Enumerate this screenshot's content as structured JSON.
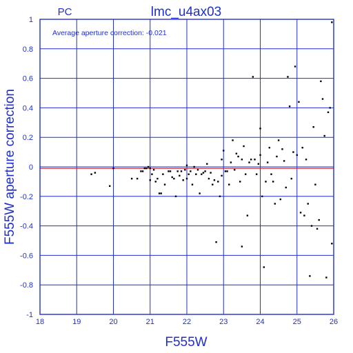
{
  "header": {
    "detector": "PC",
    "title": "lmc_u4ax03"
  },
  "annotation": "Average aperture correction: -0.021",
  "chart_data": {
    "type": "scatter",
    "title": "lmc_u4ax03",
    "subtitle": "PC",
    "xlabel": "F555W",
    "ylabel": "F555W aperture correction",
    "xlim": [
      18,
      26
    ],
    "ylim": [
      -1,
      1
    ],
    "grid": true,
    "x_ticks": [
      "18",
      "19",
      "20",
      "21",
      "22",
      "23",
      "24",
      "25",
      "26"
    ],
    "y_ticks": [
      "1",
      "0.8",
      "0.6",
      "0.4",
      "0.2",
      "0",
      "-0.2",
      "-0.4",
      "-0.6",
      "-0.8",
      "-1"
    ],
    "reference_line": {
      "y": -0.01,
      "color": "#e02020"
    },
    "colors": {
      "frame": "#1f2fc8",
      "points": "#000000",
      "reference": "#e02020"
    },
    "points": [
      [
        19.4,
        -0.05
      ],
      [
        19.5,
        -0.04
      ],
      [
        19.9,
        -0.13
      ],
      [
        20.0,
        -0.01
      ],
      [
        20.5,
        -0.08
      ],
      [
        20.65,
        -0.08
      ],
      [
        20.75,
        -0.03
      ],
      [
        20.8,
        -0.03
      ],
      [
        20.85,
        -0.01
      ],
      [
        20.9,
        -0.01
      ],
      [
        20.95,
        0.0
      ],
      [
        21.0,
        -0.01
      ],
      [
        21.0,
        -0.09
      ],
      [
        21.05,
        -0.05
      ],
      [
        21.1,
        -0.02
      ],
      [
        21.15,
        -0.1
      ],
      [
        21.2,
        -0.08
      ],
      [
        21.25,
        -0.18
      ],
      [
        21.3,
        -0.18
      ],
      [
        21.35,
        -0.05
      ],
      [
        21.4,
        -0.12
      ],
      [
        21.5,
        -0.03
      ],
      [
        21.55,
        -0.03
      ],
      [
        21.6,
        -0.07
      ],
      [
        21.65,
        -0.08
      ],
      [
        21.7,
        -0.2
      ],
      [
        21.75,
        -0.03
      ],
      [
        21.8,
        -0.06
      ],
      [
        21.85,
        -0.03
      ],
      [
        21.9,
        -0.09
      ],
      [
        21.95,
        -0.02
      ],
      [
        22.0,
        0.01
      ],
      [
        22.0,
        -0.08
      ],
      [
        22.05,
        -0.05
      ],
      [
        22.1,
        -0.03
      ],
      [
        22.15,
        -0.12
      ],
      [
        22.2,
        0.0
      ],
      [
        22.25,
        -0.05
      ],
      [
        22.3,
        -0.02
      ],
      [
        22.35,
        -0.18
      ],
      [
        22.4,
        -0.05
      ],
      [
        22.45,
        -0.04
      ],
      [
        22.5,
        -0.03
      ],
      [
        22.55,
        0.02
      ],
      [
        22.6,
        -0.08
      ],
      [
        22.65,
        -0.04
      ],
      [
        22.7,
        -0.12
      ],
      [
        22.75,
        -0.09
      ],
      [
        22.8,
        -0.51
      ],
      [
        22.85,
        -0.1
      ],
      [
        22.9,
        -0.2
      ],
      [
        22.95,
        -0.06
      ],
      [
        22.95,
        0.05
      ],
      [
        23.0,
        0.11
      ],
      [
        23.05,
        -0.03
      ],
      [
        23.1,
        -0.03
      ],
      [
        23.15,
        -0.12
      ],
      [
        23.2,
        0.03
      ],
      [
        23.25,
        0.18
      ],
      [
        23.3,
        -0.02
      ],
      [
        23.35,
        0.09
      ],
      [
        23.4,
        0.07
      ],
      [
        23.45,
        -0.1
      ],
      [
        23.5,
        0.05
      ],
      [
        23.5,
        -0.54
      ],
      [
        23.55,
        0.14
      ],
      [
        23.6,
        -0.05
      ],
      [
        23.65,
        -0.33
      ],
      [
        23.7,
        0.03
      ],
      [
        23.75,
        0.05
      ],
      [
        23.8,
        0.61
      ],
      [
        23.85,
        0.05
      ],
      [
        23.9,
        -0.05
      ],
      [
        23.95,
        0.02
      ],
      [
        24.0,
        0.26
      ],
      [
        24.0,
        0.08
      ],
      [
        24.05,
        -0.2
      ],
      [
        24.1,
        -0.68
      ],
      [
        24.15,
        -0.1
      ],
      [
        24.2,
        0.03
      ],
      [
        24.25,
        0.13
      ],
      [
        24.3,
        -0.05
      ],
      [
        24.35,
        -0.1
      ],
      [
        24.4,
        -0.25
      ],
      [
        24.45,
        0.07
      ],
      [
        24.5,
        0.18
      ],
      [
        24.55,
        -0.22
      ],
      [
        24.6,
        0.12
      ],
      [
        24.65,
        0.04
      ],
      [
        24.7,
        -0.14
      ],
      [
        24.75,
        0.61
      ],
      [
        24.8,
        0.41
      ],
      [
        24.85,
        -0.08
      ],
      [
        24.9,
        0.1
      ],
      [
        24.95,
        0.68
      ],
      [
        25.0,
        0.08
      ],
      [
        25.05,
        0.44
      ],
      [
        25.1,
        -0.31
      ],
      [
        25.15,
        0.13
      ],
      [
        25.2,
        -0.33
      ],
      [
        25.25,
        0.05
      ],
      [
        25.3,
        -0.25
      ],
      [
        25.35,
        -0.74
      ],
      [
        25.4,
        -0.4
      ],
      [
        25.45,
        0.27
      ],
      [
        25.5,
        -0.12
      ],
      [
        25.55,
        -0.42
      ],
      [
        25.6,
        -0.36
      ],
      [
        25.65,
        0.58
      ],
      [
        25.7,
        0.46
      ],
      [
        25.75,
        0.21
      ],
      [
        25.8,
        -0.75
      ],
      [
        25.85,
        0.37
      ],
      [
        25.9,
        0.4
      ],
      [
        25.95,
        -0.52
      ],
      [
        25.95,
        0.98
      ]
    ]
  }
}
